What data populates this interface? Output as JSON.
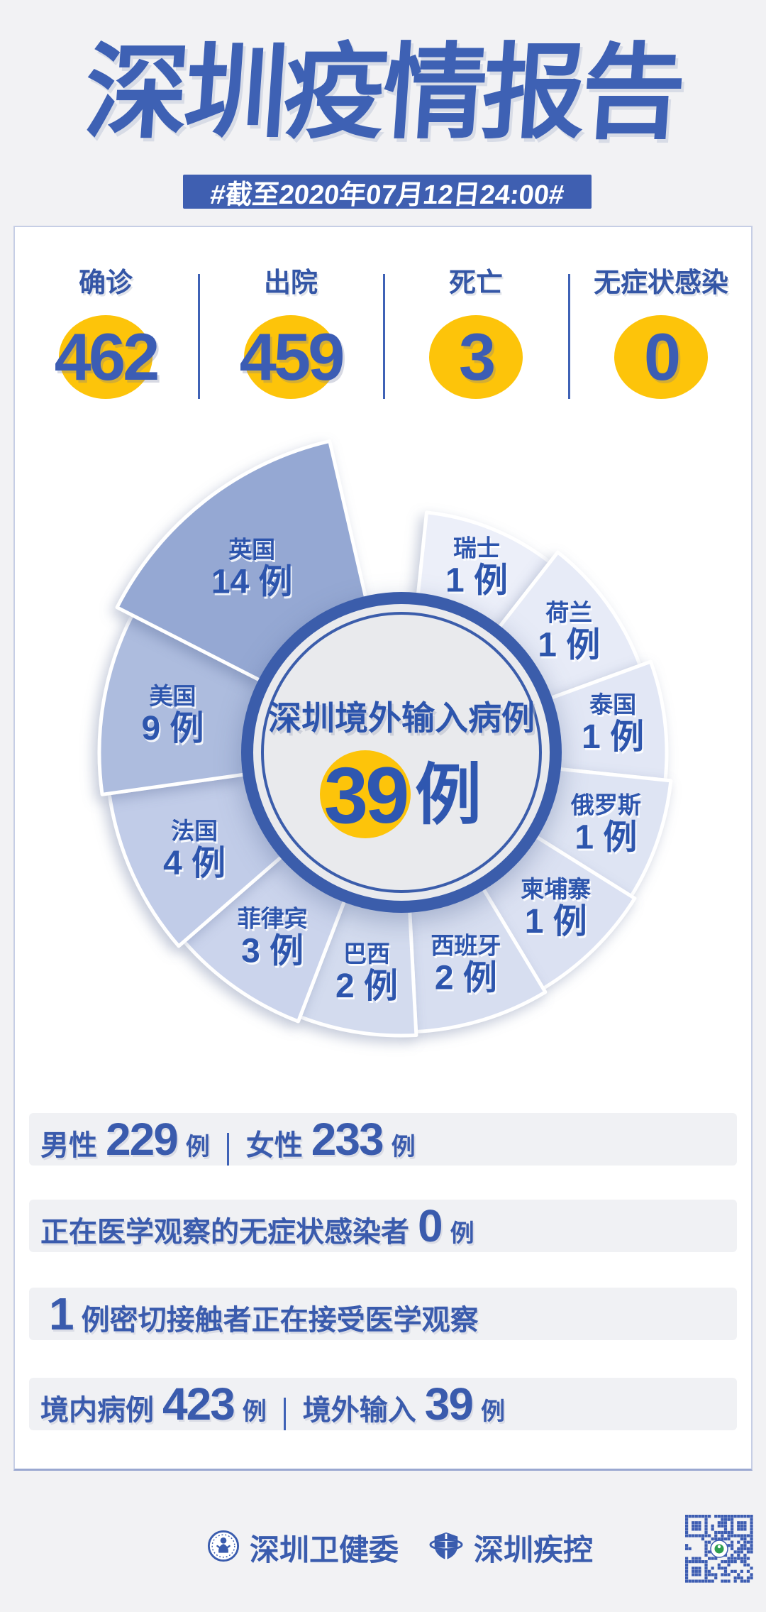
{
  "page": {
    "background": "#f2f2f4",
    "accent_blue": "#3f5fb1",
    "accent_yellow": "#fdc40a"
  },
  "header": {
    "title": "深圳疫情报告",
    "banner": "#截至2020年07月12日24:00#"
  },
  "summary": {
    "items": [
      {
        "label": "确诊",
        "value": "462"
      },
      {
        "label": "出院",
        "value": "459"
      },
      {
        "label": "死亡",
        "value": "3"
      },
      {
        "label": "无症状感染",
        "value": "0"
      }
    ]
  },
  "chart_data": {
    "type": "pie",
    "title": "深圳境外输入病例",
    "total_value": "39",
    "total_unit": "例",
    "legend_position": "on-slices",
    "center": [
      566,
      1060
    ],
    "inner_r": 222,
    "ring_outer_r": 226,
    "ring_fill": "#3b5dab",
    "ring_inner_fill": "#e9eaed",
    "slices": [
      {
        "country": "瑞士",
        "value": 1,
        "label": "1 例",
        "start": 6,
        "end": 38,
        "outer_r": 340,
        "label_r": 283,
        "label_angle": 22,
        "color": "#eceff9"
      },
      {
        "country": "荷兰",
        "value": 1,
        "label": "1 例",
        "start": 38,
        "end": 70,
        "outer_r": 358,
        "label_r": 292,
        "label_angle": 54,
        "color": "#e7ebf7"
      },
      {
        "country": "泰国",
        "value": 1,
        "label": "1 例",
        "start": 70,
        "end": 96,
        "outer_r": 374,
        "label_r": 301,
        "label_angle": 82,
        "color": "#e2e7f5"
      },
      {
        "country": "俄罗斯",
        "value": 1,
        "label": "1 例",
        "start": 96,
        "end": 122,
        "outer_r": 382,
        "label_r": 305,
        "label_angle": 109,
        "color": "#dee4f3"
      },
      {
        "country": "柬埔寨",
        "value": 1,
        "label": "1 例",
        "start": 122,
        "end": 149,
        "outer_r": 388,
        "label_r": 308,
        "label_angle": 135,
        "color": "#dbe1f2"
      },
      {
        "country": "西班牙",
        "value": 2,
        "label": "2 例",
        "start": 149,
        "end": 177,
        "outer_r": 394,
        "label_r": 311,
        "label_angle": 163,
        "color": "#d7def0"
      },
      {
        "country": "巴西",
        "value": 2,
        "label": "2 例",
        "start": 177,
        "end": 201,
        "outer_r": 399,
        "label_r": 313,
        "label_angle": 189,
        "color": "#d3dbee"
      },
      {
        "country": "菲律宾",
        "value": 3,
        "label": "3 例",
        "start": 201,
        "end": 229,
        "outer_r": 406,
        "label_r": 317,
        "label_angle": 215,
        "color": "#cbd4ec"
      },
      {
        "country": "法国",
        "value": 4,
        "label": "4 例",
        "start": 229,
        "end": 262,
        "outer_r": 416,
        "label_r": 322,
        "label_angle": 245,
        "color": "#c1cce8"
      },
      {
        "country": "美国",
        "value": 9,
        "label": "9 例",
        "start": 262,
        "end": 297,
        "outer_r": 426,
        "label_r": 327,
        "label_angle": 279.5,
        "color": "#adbcde"
      },
      {
        "country": "英国",
        "value": 14,
        "label": "14 例",
        "start": 297,
        "end": 347,
        "outer_r": 450,
        "label_r": 335,
        "label_angle": 321,
        "color": "#95a8d3"
      }
    ]
  },
  "details": {
    "rows": [
      {
        "parts": [
          [
            "label",
            "男性"
          ],
          [
            "big",
            "229"
          ],
          [
            "small",
            "例"
          ],
          [
            "bar",
            ""
          ],
          [
            "label",
            "女性"
          ],
          [
            "big",
            "233"
          ],
          [
            "small",
            "例"
          ]
        ]
      },
      {
        "parts": [
          [
            "label",
            "正在医学观察的无症状感染者"
          ],
          [
            "big",
            "0"
          ],
          [
            "small",
            "例"
          ]
        ]
      },
      {
        "parts": [
          [
            "big",
            "1"
          ],
          [
            "label",
            "例密切接触者正在接受医学观察"
          ]
        ]
      },
      {
        "parts": [
          [
            "label",
            "境内病例"
          ],
          [
            "big",
            "423"
          ],
          [
            "small",
            "例"
          ],
          [
            "bar",
            ""
          ],
          [
            "label",
            "境外输入"
          ],
          [
            "big",
            "39"
          ],
          [
            "small",
            "例"
          ]
        ]
      }
    ]
  },
  "footer": {
    "org1": "深圳卫健委",
    "org2": "深圳疾控"
  }
}
